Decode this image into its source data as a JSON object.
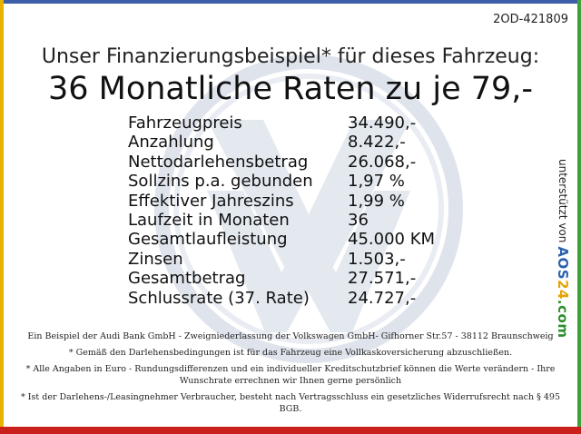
{
  "reference": "2OD-421809",
  "subtitle": "Unser Finanzierungsbeispiel* für dieses Fahrzeug:",
  "headline": "36 Monatliche Raten zu je 79,-",
  "details": [
    {
      "label": "Fahrzeugpreis",
      "value": "34.490,-"
    },
    {
      "label": "Anzahlung",
      "value": "8.422,-"
    },
    {
      "label": "Nettodarlehensbetrag",
      "value": "26.068,-"
    },
    {
      "label": "Sollzins p.a. gebunden",
      "value": "1,97 %"
    },
    {
      "label": "Effektiver Jahreszins",
      "value": "1,99 %"
    },
    {
      "label": "Laufzeit in Monaten",
      "value": "36"
    },
    {
      "label": "Gesamtlaufleistung",
      "value": "45.000 KM"
    },
    {
      "label": "Zinsen",
      "value": "1.503,-"
    },
    {
      "label": "Gesamtbetrag",
      "value": "27.571,-"
    },
    {
      "label": "Schlussrate (37. Rate)",
      "value": "24.727,-"
    }
  ],
  "sponsor": {
    "text": "unterstützt von",
    "brand_part1": "AOS",
    "brand_part2": "24",
    "brand_part3": ".com"
  },
  "footer": {
    "line1": "Ein Beispiel der Audi Bank GmbH - Zweigniederlassung der Volkswagen GmbH- Gifhorner Str.57 - 38112 Braunschweig",
    "line2": "* Gemäß den Darlehensbedingungen ist für das Fahrzeug eine Vollkaskoversicherung abzuschließen.",
    "line3": "* Alle Angaben in Euro - Rundungsdifferenzen und ein individueller Kreditschutzbrief können die Werte verändern - Ihre Wunschrate errechnen wir Ihnen gerne persönlich",
    "line4": "* Ist der Darlehens-/Leasingnehmer Verbraucher, besteht nach Vertragsschluss ein gesetzliches Widerrufsrecht nach § 495 BGB."
  },
  "colors": {
    "bar_top": "#3d5fa9",
    "bar_left": "#e8b300",
    "bar_right": "#3ea23a",
    "bar_bottom": "#c9201c",
    "watermark": "#dfe4ec"
  }
}
